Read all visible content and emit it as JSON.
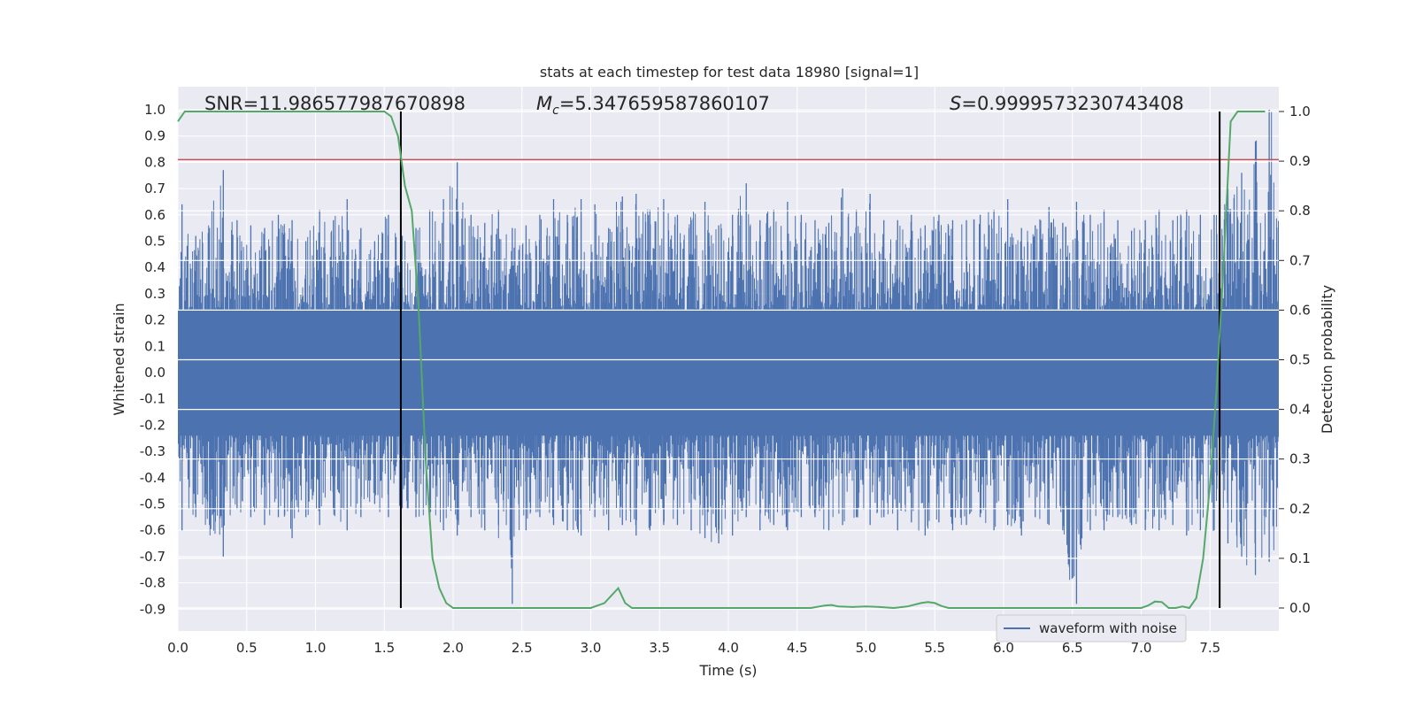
{
  "chart_data": {
    "type": "line",
    "title": "stats at each timestep for test data 18980 [signal=1]",
    "xlabel": "Time (s)",
    "ylabel": "Whitened strain",
    "y2label": "Detection probability",
    "xlim": [
      0.0,
      8.0
    ],
    "ylim": [
      -0.95,
      1.05
    ],
    "y2lim": [
      -0.05,
      1.05
    ],
    "xticks": [
      "0.0",
      "0.5",
      "1.0",
      "1.5",
      "2.0",
      "2.5",
      "3.0",
      "3.5",
      "4.0",
      "4.5",
      "5.0",
      "5.5",
      "6.0",
      "6.5",
      "7.0",
      "7.5"
    ],
    "yticks": [
      "1.0",
      "0.9",
      "0.8",
      "0.7",
      "0.6",
      "0.5",
      "0.4",
      "0.3",
      "0.2",
      "0.1",
      "0.0",
      "-0.1",
      "-0.2",
      "-0.3",
      "-0.4",
      "-0.5",
      "-0.6",
      "-0.7",
      "-0.8",
      "-0.9"
    ],
    "y2ticks": [
      "1.0",
      "0.9",
      "0.8",
      "0.7",
      "0.6",
      "0.5",
      "0.4",
      "0.3",
      "0.2",
      "0.1",
      "0.0"
    ],
    "grid": true,
    "legend_position": "lower-right",
    "annotations": {
      "snr": "SNR=11.986577987670898",
      "mc_symbol": "M",
      "mc_sub": "c",
      "mc_value": "=5.347659587860107",
      "s_symbol": "S",
      "s_value": "=0.9999573230743408"
    },
    "threshold_y": 0.81,
    "vertical_markers_x": [
      1.62,
      7.57
    ],
    "series": [
      {
        "name": "waveform with noise",
        "axis": "left",
        "color": "#4c72b0",
        "description_envelope": {
          "x": [
            0.0,
            0.1,
            0.2,
            0.3,
            0.4,
            0.5,
            0.6,
            0.7,
            0.8,
            0.9,
            1.0,
            1.1,
            1.2,
            1.3,
            1.4,
            1.5,
            1.6,
            1.7,
            1.8,
            1.9,
            2.0,
            2.1,
            2.2,
            2.3,
            2.4,
            2.5,
            2.6,
            2.7,
            2.8,
            2.9,
            3.0,
            3.1,
            3.2,
            3.3,
            3.4,
            3.5,
            3.6,
            3.7,
            3.8,
            3.9,
            4.0,
            4.1,
            4.2,
            4.3,
            4.4,
            4.5,
            4.6,
            4.7,
            4.8,
            4.9,
            5.0,
            5.1,
            5.2,
            5.3,
            5.4,
            5.5,
            5.6,
            5.7,
            5.8,
            5.9,
            6.0,
            6.1,
            6.2,
            6.3,
            6.4,
            6.5,
            6.6,
            6.7,
            6.8,
            6.9,
            7.0,
            7.1,
            7.2,
            7.3,
            7.4,
            7.5,
            7.6,
            7.7,
            7.8,
            7.9
          ],
          "max": [
            0.64,
            0.52,
            0.55,
            0.77,
            0.58,
            0.56,
            0.55,
            0.6,
            0.58,
            0.5,
            0.62,
            0.58,
            0.66,
            0.55,
            0.5,
            0.6,
            0.52,
            0.55,
            0.62,
            0.66,
            0.8,
            0.6,
            0.57,
            0.62,
            0.55,
            0.56,
            0.6,
            0.66,
            0.6,
            0.66,
            0.64,
            0.55,
            0.67,
            0.68,
            0.62,
            0.66,
            0.6,
            0.58,
            0.65,
            0.56,
            0.6,
            0.72,
            0.58,
            0.62,
            0.65,
            0.6,
            0.58,
            0.57,
            0.7,
            0.62,
            0.68,
            0.58,
            0.58,
            0.6,
            0.56,
            0.6,
            0.58,
            0.58,
            0.6,
            0.62,
            0.66,
            0.55,
            0.56,
            0.63,
            0.57,
            0.65,
            0.6,
            0.62,
            0.58,
            0.54,
            0.58,
            0.62,
            0.58,
            0.62,
            0.6,
            0.6,
            0.7,
            0.76,
            0.88,
            1.0
          ],
          "min": [
            -0.6,
            -0.55,
            -0.58,
            -0.7,
            -0.52,
            -0.55,
            -0.58,
            -0.55,
            -0.63,
            -0.55,
            -0.58,
            -0.52,
            -0.6,
            -0.55,
            -0.5,
            -0.55,
            -0.52,
            -0.55,
            -0.58,
            -0.6,
            -0.62,
            -0.55,
            -0.6,
            -0.58,
            -0.88,
            -0.6,
            -0.55,
            -0.58,
            -0.6,
            -0.62,
            -0.55,
            -0.6,
            -0.58,
            -0.62,
            -0.6,
            -0.58,
            -0.58,
            -0.6,
            -0.63,
            -0.65,
            -0.62,
            -0.55,
            -0.6,
            -0.58,
            -0.6,
            -0.55,
            -0.55,
            -0.6,
            -0.58,
            -0.55,
            -0.58,
            -0.55,
            -0.6,
            -0.57,
            -0.62,
            -0.57,
            -0.6,
            -0.58,
            -0.55,
            -0.6,
            -0.58,
            -0.62,
            -0.55,
            -0.58,
            -0.6,
            -0.88,
            -0.6,
            -0.6,
            -0.55,
            -0.58,
            -0.6,
            -0.6,
            -0.58,
            -0.62,
            -0.6,
            -0.6,
            -0.65,
            -0.7,
            -0.77,
            -0.72
          ]
        }
      },
      {
        "name": "",
        "axis": "right",
        "color": "#55a868",
        "x": [
          0.0,
          0.05,
          0.1,
          0.3,
          0.5,
          0.8,
          1.0,
          1.2,
          1.4,
          1.5,
          1.55,
          1.6,
          1.65,
          1.7,
          1.75,
          1.8,
          1.85,
          1.9,
          1.95,
          2.0,
          2.2,
          2.5,
          2.7,
          2.9,
          3.0,
          3.1,
          3.2,
          3.25,
          3.3,
          3.5,
          3.8,
          4.0,
          4.3,
          4.5,
          4.6,
          4.7,
          4.75,
          4.8,
          4.9,
          5.0,
          5.1,
          5.2,
          5.3,
          5.4,
          5.45,
          5.5,
          5.55,
          5.6,
          5.8,
          6.0,
          6.2,
          6.5,
          6.8,
          6.9,
          7.0,
          7.05,
          7.1,
          7.15,
          7.2,
          7.25,
          7.3,
          7.35,
          7.4,
          7.45,
          7.5,
          7.55,
          7.6,
          7.65,
          7.7,
          7.75,
          7.8,
          7.9
        ],
        "y": [
          0.98,
          1.0,
          1.0,
          1.0,
          1.0,
          1.0,
          1.0,
          1.0,
          1.0,
          1.0,
          0.99,
          0.95,
          0.85,
          0.8,
          0.6,
          0.3,
          0.1,
          0.04,
          0.01,
          0.0,
          0.0,
          0.0,
          0.0,
          0.0,
          0.0,
          0.01,
          0.04,
          0.01,
          0.0,
          0.0,
          0.0,
          0.0,
          0.0,
          0.0,
          0.0,
          0.005,
          0.006,
          0.003,
          0.002,
          0.003,
          0.002,
          0.0,
          0.003,
          0.01,
          0.012,
          0.01,
          0.004,
          0.0,
          0.0,
          0.0,
          0.0,
          0.0,
          0.0,
          0.0,
          0.0,
          0.005,
          0.013,
          0.012,
          0.0,
          0.0,
          0.003,
          0.0,
          0.02,
          0.1,
          0.25,
          0.45,
          0.7,
          0.98,
          1.0,
          1.0,
          1.0,
          1.0
        ]
      }
    ]
  }
}
